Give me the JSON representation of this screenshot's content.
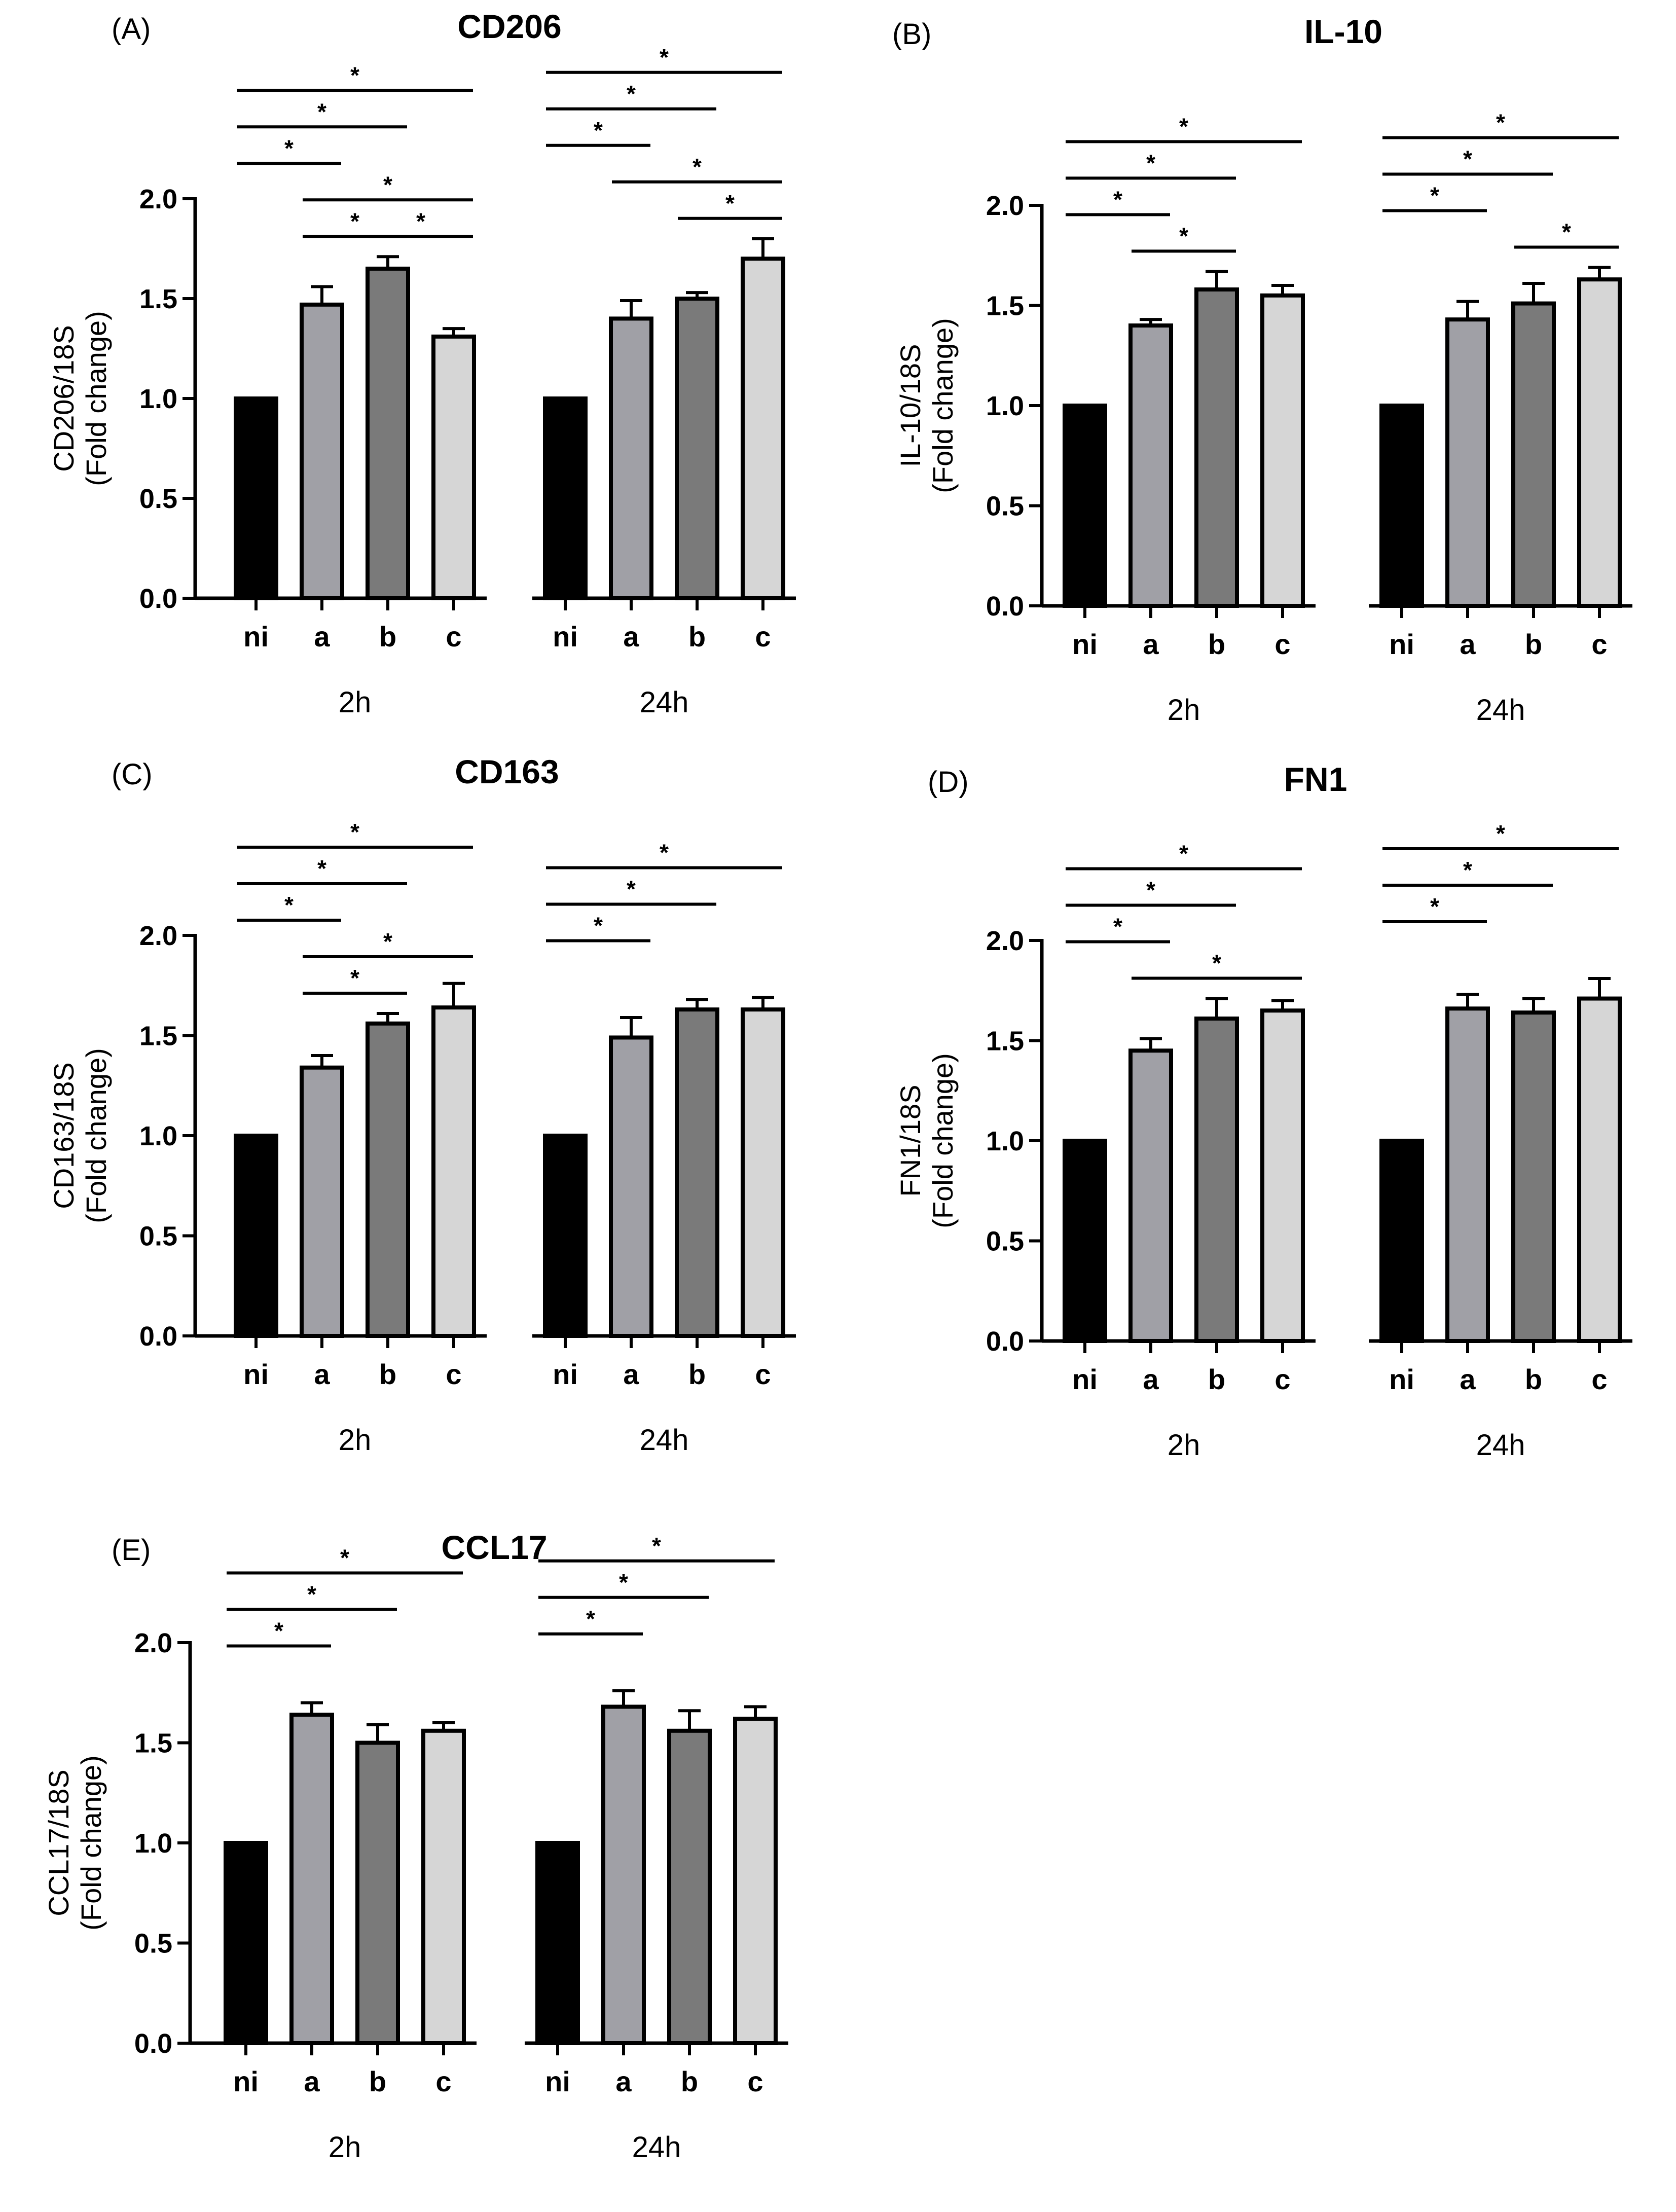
{
  "chart_data": [
    {
      "type": "bar",
      "panel_label": "(A)",
      "title": "CD206",
      "ylabel_line1": "CD206/18S",
      "ylabel_line2": "(Fold change)",
      "ylim": [
        0,
        2.0
      ],
      "ytick_labels": [
        "0.0",
        "0.5",
        "1.0",
        "1.5",
        "2.0"
      ],
      "categories": [
        "ni",
        "a",
        "b",
        "c"
      ],
      "groups": [
        {
          "label": "2h",
          "values": [
            1.0,
            1.47,
            1.65,
            1.31
          ],
          "errors": [
            0,
            0.09,
            0.06,
            0.04
          ]
        },
        {
          "label": "24h",
          "values": [
            1.0,
            1.4,
            1.5,
            1.7
          ],
          "errors": [
            0,
            0.09,
            0.03,
            0.1
          ]
        }
      ],
      "significance": [
        {
          "group": 0,
          "from": 0,
          "to": 1,
          "label": "*"
        },
        {
          "group": 0,
          "from": 0,
          "to": 2,
          "label": "*"
        },
        {
          "group": 0,
          "from": 0,
          "to": 3,
          "label": "*"
        },
        {
          "group": 0,
          "from": 1,
          "to": 2,
          "label": "*"
        },
        {
          "group": 0,
          "from": 2,
          "to": 3,
          "label": "*"
        },
        {
          "group": 0,
          "from": 1,
          "to": 3,
          "label": "*"
        },
        {
          "group": 1,
          "from": 0,
          "to": 1,
          "label": "*"
        },
        {
          "group": 1,
          "from": 0,
          "to": 2,
          "label": "*"
        },
        {
          "group": 1,
          "from": 0,
          "to": 3,
          "label": "*"
        },
        {
          "group": 1,
          "from": 2,
          "to": 3,
          "label": "*"
        },
        {
          "group": 1,
          "from": 1,
          "to": 3,
          "label": "*"
        }
      ]
    },
    {
      "type": "bar",
      "panel_label": "(B)",
      "title": "IL-10",
      "ylabel_line1": "IL-10/18S",
      "ylabel_line2": "(Fold change)",
      "ylim": [
        0,
        2.0
      ],
      "ytick_labels": [
        "0.0",
        "0.5",
        "1.0",
        "1.5",
        "2.0"
      ],
      "categories": [
        "ni",
        "a",
        "b",
        "c"
      ],
      "groups": [
        {
          "label": "2h",
          "values": [
            1.0,
            1.4,
            1.58,
            1.55
          ],
          "errors": [
            0,
            0.03,
            0.09,
            0.05
          ]
        },
        {
          "label": "24h",
          "values": [
            1.0,
            1.43,
            1.51,
            1.63
          ],
          "errors": [
            0,
            0.09,
            0.1,
            0.06
          ]
        }
      ],
      "significance": [
        {
          "group": 0,
          "from": 0,
          "to": 1,
          "label": "*"
        },
        {
          "group": 0,
          "from": 0,
          "to": 2,
          "label": "*"
        },
        {
          "group": 0,
          "from": 0,
          "to": 3,
          "label": "*"
        },
        {
          "group": 0,
          "from": 1,
          "to": 2,
          "label": "*"
        },
        {
          "group": 1,
          "from": 0,
          "to": 1,
          "label": "*"
        },
        {
          "group": 1,
          "from": 0,
          "to": 2,
          "label": "*"
        },
        {
          "group": 1,
          "from": 0,
          "to": 3,
          "label": "*"
        },
        {
          "group": 1,
          "from": 2,
          "to": 3,
          "label": "*"
        }
      ]
    },
    {
      "type": "bar",
      "panel_label": "(C)",
      "title": "CD163",
      "ylabel_line1": "CD163/18S",
      "ylabel_line2": "(Fold change)",
      "ylim": [
        0,
        2.0
      ],
      "ytick_labels": [
        "0.0",
        "0.5",
        "1.0",
        "1.5",
        "2.0"
      ],
      "categories": [
        "ni",
        "a",
        "b",
        "c"
      ],
      "groups": [
        {
          "label": "2h",
          "values": [
            1.0,
            1.34,
            1.56,
            1.64
          ],
          "errors": [
            0,
            0.06,
            0.05,
            0.12
          ]
        },
        {
          "label": "24h",
          "values": [
            1.0,
            1.49,
            1.63,
            1.63
          ],
          "errors": [
            0,
            0.1,
            0.05,
            0.06
          ]
        }
      ],
      "significance": [
        {
          "group": 0,
          "from": 0,
          "to": 1,
          "label": "*"
        },
        {
          "group": 0,
          "from": 0,
          "to": 2,
          "label": "*"
        },
        {
          "group": 0,
          "from": 0,
          "to": 3,
          "label": "*"
        },
        {
          "group": 0,
          "from": 1,
          "to": 2,
          "label": "*"
        },
        {
          "group": 0,
          "from": 1,
          "to": 3,
          "label": "*"
        },
        {
          "group": 1,
          "from": 0,
          "to": 1,
          "label": "*"
        },
        {
          "group": 1,
          "from": 0,
          "to": 2,
          "label": "*"
        },
        {
          "group": 1,
          "from": 0,
          "to": 3,
          "label": "*"
        }
      ]
    },
    {
      "type": "bar",
      "panel_label": "(D)",
      "title": "FN1",
      "ylabel_line1": "FN1/18S",
      "ylabel_line2": "(Fold change)",
      "ylim": [
        0,
        2.0
      ],
      "ytick_labels": [
        "0.0",
        "0.5",
        "1.0",
        "1.5",
        "2.0"
      ],
      "categories": [
        "ni",
        "a",
        "b",
        "c"
      ],
      "groups": [
        {
          "label": "2h",
          "values": [
            1.0,
            1.45,
            1.61,
            1.65
          ],
          "errors": [
            0,
            0.06,
            0.1,
            0.05
          ]
        },
        {
          "label": "24h",
          "values": [
            1.0,
            1.66,
            1.64,
            1.71
          ],
          "errors": [
            0,
            0.07,
            0.07,
            0.1
          ]
        }
      ],
      "significance": [
        {
          "group": 0,
          "from": 0,
          "to": 1,
          "label": "*"
        },
        {
          "group": 0,
          "from": 0,
          "to": 2,
          "label": "*"
        },
        {
          "group": 0,
          "from": 0,
          "to": 3,
          "label": "*"
        },
        {
          "group": 0,
          "from": 1,
          "to": 3,
          "label": "*"
        },
        {
          "group": 1,
          "from": 0,
          "to": 1,
          "label": "*"
        },
        {
          "group": 1,
          "from": 0,
          "to": 2,
          "label": "*"
        },
        {
          "group": 1,
          "from": 0,
          "to": 3,
          "label": "*"
        }
      ]
    },
    {
      "type": "bar",
      "panel_label": "(E)",
      "title": "CCL17",
      "ylabel_line1": "CCL17/18S",
      "ylabel_line2": "(Fold change)",
      "ylim": [
        0,
        2.0
      ],
      "ytick_labels": [
        "0.0",
        "0.5",
        "1.0",
        "1.5",
        "2.0"
      ],
      "categories": [
        "ni",
        "a",
        "b",
        "c"
      ],
      "groups": [
        {
          "label": "2h",
          "values": [
            1.0,
            1.64,
            1.5,
            1.56
          ],
          "errors": [
            0,
            0.06,
            0.09,
            0.04
          ]
        },
        {
          "label": "24h",
          "values": [
            1.0,
            1.68,
            1.56,
            1.62
          ],
          "errors": [
            0,
            0.08,
            0.1,
            0.06
          ]
        }
      ],
      "significance": [
        {
          "group": 0,
          "from": 0,
          "to": 1,
          "label": "*"
        },
        {
          "group": 0,
          "from": 0,
          "to": 2,
          "label": "*"
        },
        {
          "group": 0,
          "from": 0,
          "to": 3,
          "label": "*"
        },
        {
          "group": 1,
          "from": 0,
          "to": 1,
          "label": "*"
        },
        {
          "group": 1,
          "from": 0,
          "to": 2,
          "label": "*"
        },
        {
          "group": 1,
          "from": 0,
          "to": 3,
          "label": "*"
        }
      ]
    }
  ],
  "colors": {
    "ni": "#000000",
    "a": "#a0a0a6",
    "b": "#7a7a7a",
    "c": "#d6d6d6",
    "stroke": "#000000"
  }
}
